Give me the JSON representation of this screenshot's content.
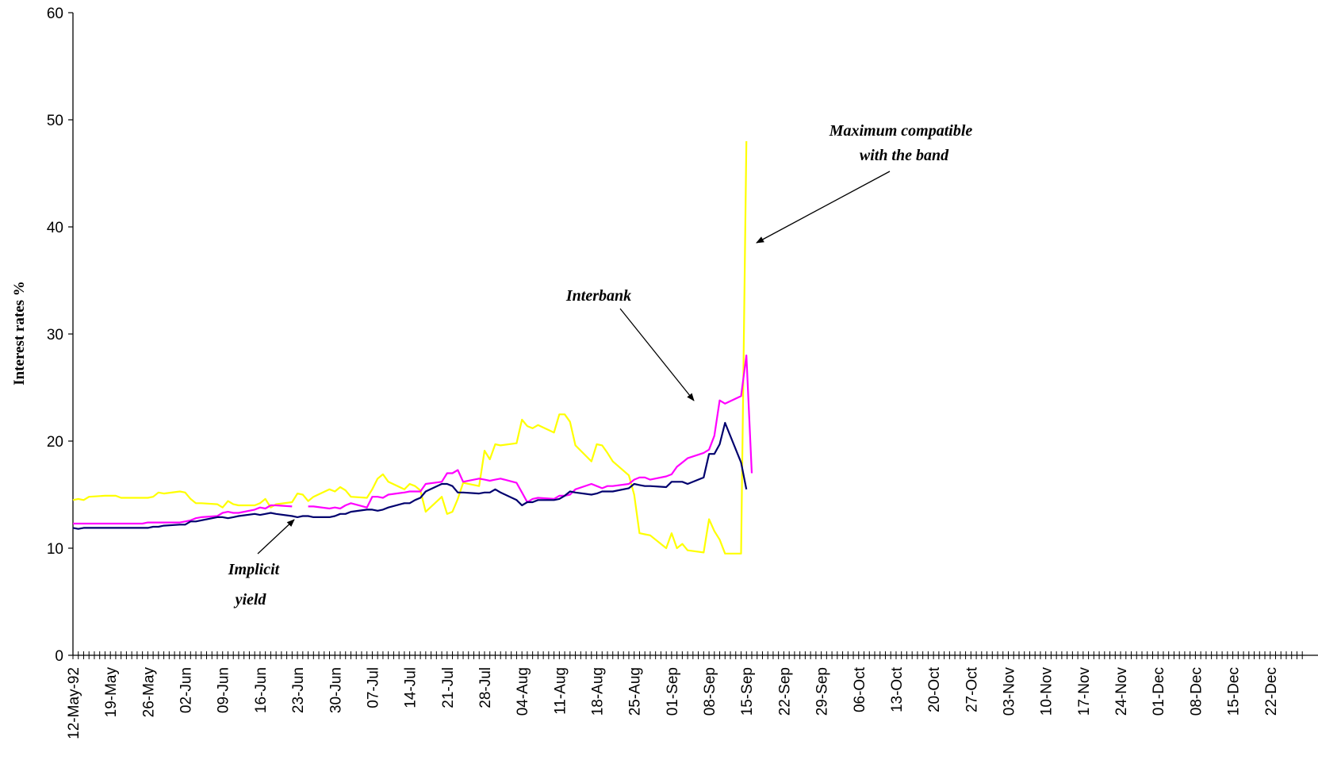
{
  "chart_data": {
    "type": "line",
    "ylabel": "Interest rates %",
    "ylim": [
      0,
      60
    ],
    "yticks": [
      0,
      10,
      20,
      30,
      40,
      50,
      60
    ],
    "x_date_start": "1992-05-12",
    "x_date_end": "1992-12-28",
    "x_tick_labels": [
      "12-May-92",
      "19-May",
      "26-May",
      "02-Jun",
      "09-Jun",
      "16-Jun",
      "23-Jun",
      "30-Jun",
      "07-Jul",
      "14-Jul",
      "21-Jul",
      "28-Jul",
      "04-Aug",
      "11-Aug",
      "18-Aug",
      "25-Aug",
      "01-Sep",
      "08-Sep",
      "15-Sep",
      "22-Sep",
      "29-Sep",
      "06-Oct",
      "13-Oct",
      "20-Oct",
      "27-Oct",
      "03-Nov",
      "10-Nov",
      "17-Nov",
      "24-Nov",
      "01-Dec",
      "08-Dec",
      "15-Dec",
      "22-Dec"
    ],
    "series": [
      {
        "color": "#ffff00",
        "points": [
          [
            "1992-05-12",
            14.5
          ],
          [
            "1992-05-13",
            14.6
          ],
          [
            "1992-05-14",
            14.5
          ],
          [
            "1992-05-15",
            14.8
          ],
          [
            "1992-05-18",
            14.9
          ],
          [
            "1992-05-19",
            14.9
          ],
          [
            "1992-05-20",
            14.9
          ],
          [
            "1992-05-21",
            14.7
          ],
          [
            "1992-05-22",
            14.7
          ],
          [
            "1992-05-25",
            14.7
          ],
          [
            "1992-05-26",
            14.7
          ],
          [
            "1992-05-27",
            14.8
          ],
          [
            "1992-05-28",
            15.2
          ],
          [
            "1992-05-29",
            15.1
          ],
          [
            "1992-06-01",
            15.3
          ],
          [
            "1992-06-02",
            15.2
          ],
          [
            "1992-06-03",
            14.6
          ],
          [
            "1992-06-04",
            14.2
          ],
          [
            "1992-06-05",
            14.2
          ],
          [
            "1992-06-08",
            14.1
          ],
          [
            "1992-06-09",
            13.8
          ],
          [
            "1992-06-10",
            14.4
          ],
          [
            "1992-06-11",
            14.1
          ],
          [
            "1992-06-12",
            14.0
          ],
          [
            "1992-06-15",
            14.0
          ],
          [
            "1992-06-16",
            14.2
          ],
          [
            "1992-06-17",
            14.6
          ],
          [
            "1992-06-18",
            13.8
          ],
          [
            "1992-06-19",
            14.1
          ],
          [
            "1992-06-22",
            14.3
          ],
          [
            "1992-06-23",
            15.1
          ],
          [
            "1992-06-24",
            15.0
          ],
          [
            "1992-06-25",
            14.4
          ],
          [
            "1992-06-26",
            14.8
          ],
          [
            "1992-06-29",
            15.5
          ],
          [
            "1992-06-30",
            15.3
          ],
          [
            "1992-07-01",
            15.7
          ],
          [
            "1992-07-02",
            15.4
          ],
          [
            "1992-07-03",
            14.8
          ],
          [
            "1992-07-06",
            14.7
          ],
          [
            "1992-07-07",
            15.5
          ],
          [
            "1992-07-08",
            16.5
          ],
          [
            "1992-07-09",
            16.9
          ],
          [
            "1992-07-10",
            16.2
          ],
          [
            "1992-07-13",
            15.5
          ],
          [
            "1992-07-14",
            16.0
          ],
          [
            "1992-07-15",
            15.8
          ],
          [
            "1992-07-16",
            15.4
          ],
          [
            "1992-07-17",
            13.4
          ],
          [
            "1992-07-20",
            14.8
          ],
          [
            "1992-07-21",
            13.2
          ],
          [
            "1992-07-22",
            13.4
          ],
          [
            "1992-07-23",
            14.6
          ],
          [
            "1992-07-24",
            16.1
          ],
          [
            "1992-07-27",
            15.8
          ],
          [
            "1992-07-28",
            19.1
          ],
          [
            "1992-07-29",
            18.3
          ],
          [
            "1992-07-30",
            19.7
          ],
          [
            "1992-07-31",
            19.6
          ],
          [
            "1992-08-03",
            19.8
          ],
          [
            "1992-08-04",
            22.0
          ],
          [
            "1992-08-05",
            21.4
          ],
          [
            "1992-08-06",
            21.2
          ],
          [
            "1992-08-07",
            21.5
          ],
          [
            "1992-08-10",
            20.8
          ],
          [
            "1992-08-11",
            22.5
          ],
          [
            "1992-08-12",
            22.5
          ],
          [
            "1992-08-13",
            21.8
          ],
          [
            "1992-08-14",
            19.6
          ],
          [
            "1992-08-17",
            18.1
          ],
          [
            "1992-08-18",
            19.7
          ],
          [
            "1992-08-19",
            19.6
          ],
          [
            "1992-08-20",
            18.9
          ],
          [
            "1992-08-21",
            18.1
          ],
          [
            "1992-08-24",
            16.8
          ],
          [
            "1992-08-25",
            15.0
          ],
          [
            "1992-08-26",
            11.4
          ],
          [
            "1992-08-27",
            11.3
          ],
          [
            "1992-08-28",
            11.2
          ],
          [
            "1992-08-31",
            10.0
          ],
          [
            "1992-09-01",
            11.4
          ],
          [
            "1992-09-02",
            10.0
          ],
          [
            "1992-09-03",
            10.4
          ],
          [
            "1992-09-04",
            9.8
          ],
          [
            "1992-09-07",
            9.6
          ],
          [
            "1992-09-08",
            12.7
          ],
          [
            "1992-09-09",
            11.6
          ],
          [
            "1992-09-10",
            10.8
          ],
          [
            "1992-09-11",
            9.5
          ],
          [
            "1992-09-14",
            9.5
          ],
          [
            "1992-09-15",
            48.0
          ]
        ]
      },
      {
        "color": "#ff00ff",
        "points": [
          [
            "1992-05-12",
            12.3
          ],
          [
            "1992-05-13",
            12.3
          ],
          [
            "1992-05-14",
            12.3
          ],
          [
            "1992-05-15",
            12.3
          ],
          [
            "1992-05-18",
            12.3
          ],
          [
            "1992-05-19",
            12.3
          ],
          [
            "1992-05-20",
            12.3
          ],
          [
            "1992-05-21",
            12.3
          ],
          [
            "1992-05-22",
            12.3
          ],
          [
            "1992-05-25",
            12.3
          ],
          [
            "1992-05-26",
            12.4
          ],
          [
            "1992-05-27",
            12.4
          ],
          [
            "1992-05-28",
            12.4
          ],
          [
            "1992-05-29",
            12.4
          ],
          [
            "1992-06-01",
            12.4
          ],
          [
            "1992-06-02",
            12.5
          ],
          [
            "1992-06-03",
            12.6
          ],
          [
            "1992-06-04",
            12.8
          ],
          [
            "1992-06-05",
            12.9
          ],
          [
            "1992-06-08",
            13.0
          ],
          [
            "1992-06-09",
            13.3
          ],
          [
            "1992-06-10",
            13.4
          ],
          [
            "1992-06-11",
            13.3
          ],
          [
            "1992-06-12",
            13.3
          ],
          [
            "1992-06-15",
            13.6
          ],
          [
            "1992-06-16",
            13.8
          ],
          [
            "1992-06-17",
            13.7
          ],
          [
            "1992-06-18",
            14.0
          ],
          [
            "1992-06-19",
            14.0
          ],
          [
            "1992-06-22",
            13.9
          ],
          null,
          [
            "1992-06-25",
            13.9
          ],
          [
            "1992-06-26",
            13.9
          ],
          [
            "1992-06-29",
            13.7
          ],
          [
            "1992-06-30",
            13.8
          ],
          [
            "1992-07-01",
            13.7
          ],
          [
            "1992-07-02",
            14.0
          ],
          [
            "1992-07-03",
            14.2
          ],
          [
            "1992-07-06",
            13.8
          ],
          [
            "1992-07-07",
            14.8
          ],
          [
            "1992-07-08",
            14.8
          ],
          [
            "1992-07-09",
            14.7
          ],
          [
            "1992-07-10",
            15.0
          ],
          [
            "1992-07-13",
            15.2
          ],
          [
            "1992-07-14",
            15.3
          ],
          [
            "1992-07-15",
            15.3
          ],
          [
            "1992-07-16",
            15.3
          ],
          [
            "1992-07-17",
            16.0
          ],
          [
            "1992-07-20",
            16.2
          ],
          [
            "1992-07-21",
            17.0
          ],
          [
            "1992-07-22",
            17.0
          ],
          [
            "1992-07-23",
            17.3
          ],
          [
            "1992-07-24",
            16.2
          ],
          [
            "1992-07-27",
            16.5
          ],
          [
            "1992-07-28",
            16.4
          ],
          [
            "1992-07-29",
            16.3
          ],
          [
            "1992-07-30",
            16.4
          ],
          [
            "1992-07-31",
            16.5
          ],
          [
            "1992-08-03",
            16.1
          ],
          [
            "1992-08-04",
            15.2
          ],
          [
            "1992-08-05",
            14.3
          ],
          [
            "1992-08-06",
            14.6
          ],
          [
            "1992-08-07",
            14.7
          ],
          [
            "1992-08-10",
            14.6
          ],
          [
            "1992-08-11",
            14.9
          ],
          [
            "1992-08-12",
            14.9
          ],
          [
            "1992-08-13",
            15.0
          ],
          [
            "1992-08-14",
            15.5
          ],
          [
            "1992-08-17",
            16.0
          ],
          [
            "1992-08-18",
            15.8
          ],
          [
            "1992-08-19",
            15.6
          ],
          [
            "1992-08-20",
            15.8
          ],
          [
            "1992-08-21",
            15.8
          ],
          [
            "1992-08-24",
            16.0
          ],
          [
            "1992-08-25",
            16.4
          ],
          [
            "1992-08-26",
            16.6
          ],
          [
            "1992-08-27",
            16.6
          ],
          [
            "1992-08-28",
            16.4
          ],
          [
            "1992-08-31",
            16.7
          ],
          [
            "1992-09-01",
            16.9
          ],
          [
            "1992-09-02",
            17.6
          ],
          [
            "1992-09-03",
            18.0
          ],
          [
            "1992-09-04",
            18.4
          ],
          [
            "1992-09-07",
            18.9
          ],
          [
            "1992-09-08",
            19.2
          ],
          [
            "1992-09-09",
            20.5
          ],
          [
            "1992-09-10",
            23.8
          ],
          [
            "1992-09-11",
            23.5
          ],
          [
            "1992-09-14",
            24.2
          ],
          [
            "1992-09-15",
            28.0
          ],
          [
            "1992-09-16",
            17.0
          ]
        ]
      },
      {
        "color": "#00006e",
        "points": [
          [
            "1992-05-12",
            11.9
          ],
          [
            "1992-05-13",
            11.8
          ],
          [
            "1992-05-14",
            11.9
          ],
          [
            "1992-05-15",
            11.9
          ],
          [
            "1992-05-18",
            11.9
          ],
          [
            "1992-05-19",
            11.9
          ],
          [
            "1992-05-20",
            11.9
          ],
          [
            "1992-05-21",
            11.9
          ],
          [
            "1992-05-22",
            11.9
          ],
          [
            "1992-05-25",
            11.9
          ],
          [
            "1992-05-26",
            11.9
          ],
          [
            "1992-05-27",
            12.0
          ],
          [
            "1992-05-28",
            12.0
          ],
          [
            "1992-05-29",
            12.1
          ],
          [
            "1992-06-01",
            12.2
          ],
          [
            "1992-06-02",
            12.2
          ],
          [
            "1992-06-03",
            12.5
          ],
          [
            "1992-06-04",
            12.5
          ],
          [
            "1992-06-05",
            12.6
          ],
          [
            "1992-06-08",
            12.9
          ],
          [
            "1992-06-09",
            12.9
          ],
          [
            "1992-06-10",
            12.8
          ],
          [
            "1992-06-11",
            12.9
          ],
          [
            "1992-06-12",
            13.0
          ],
          [
            "1992-06-15",
            13.2
          ],
          [
            "1992-06-16",
            13.1
          ],
          [
            "1992-06-17",
            13.2
          ],
          [
            "1992-06-18",
            13.3
          ],
          [
            "1992-06-19",
            13.2
          ],
          [
            "1992-06-22",
            13.0
          ],
          [
            "1992-06-23",
            12.9
          ],
          [
            "1992-06-24",
            13.0
          ],
          [
            "1992-06-25",
            13.0
          ],
          [
            "1992-06-26",
            12.9
          ],
          [
            "1992-06-29",
            12.9
          ],
          [
            "1992-06-30",
            13.0
          ],
          [
            "1992-07-01",
            13.2
          ],
          [
            "1992-07-02",
            13.2
          ],
          [
            "1992-07-03",
            13.4
          ],
          [
            "1992-07-06",
            13.6
          ],
          [
            "1992-07-07",
            13.6
          ],
          [
            "1992-07-08",
            13.5
          ],
          [
            "1992-07-09",
            13.6
          ],
          [
            "1992-07-10",
            13.8
          ],
          [
            "1992-07-13",
            14.2
          ],
          [
            "1992-07-14",
            14.2
          ],
          [
            "1992-07-15",
            14.5
          ],
          [
            "1992-07-16",
            14.7
          ],
          [
            "1992-07-17",
            15.3
          ],
          [
            "1992-07-20",
            16.0
          ],
          [
            "1992-07-21",
            16.0
          ],
          [
            "1992-07-22",
            15.8
          ],
          [
            "1992-07-23",
            15.2
          ],
          [
            "1992-07-24",
            15.2
          ],
          [
            "1992-07-27",
            15.1
          ],
          [
            "1992-07-28",
            15.2
          ],
          [
            "1992-07-29",
            15.2
          ],
          [
            "1992-07-30",
            15.5
          ],
          [
            "1992-07-31",
            15.2
          ],
          [
            "1992-08-03",
            14.5
          ],
          [
            "1992-08-04",
            14.0
          ],
          [
            "1992-08-05",
            14.3
          ],
          [
            "1992-08-06",
            14.3
          ],
          [
            "1992-08-07",
            14.5
          ],
          [
            "1992-08-10",
            14.5
          ],
          [
            "1992-08-11",
            14.6
          ],
          [
            "1992-08-12",
            14.9
          ],
          [
            "1992-08-13",
            15.3
          ],
          [
            "1992-08-14",
            15.2
          ],
          [
            "1992-08-17",
            15.0
          ],
          [
            "1992-08-18",
            15.1
          ],
          [
            "1992-08-19",
            15.3
          ],
          [
            "1992-08-20",
            15.3
          ],
          [
            "1992-08-21",
            15.3
          ],
          [
            "1992-08-24",
            15.6
          ],
          [
            "1992-08-25",
            16.0
          ],
          [
            "1992-08-26",
            15.9
          ],
          [
            "1992-08-27",
            15.8
          ],
          [
            "1992-08-28",
            15.8
          ],
          [
            "1992-08-31",
            15.7
          ],
          [
            "1992-09-01",
            16.2
          ],
          [
            "1992-09-02",
            16.2
          ],
          [
            "1992-09-03",
            16.2
          ],
          [
            "1992-09-04",
            16.0
          ],
          [
            "1992-09-07",
            16.6
          ],
          [
            "1992-09-08",
            18.8
          ],
          [
            "1992-09-09",
            18.8
          ],
          [
            "1992-09-10",
            19.7
          ],
          [
            "1992-09-11",
            21.7
          ],
          [
            "1992-09-14",
            18.0
          ],
          [
            "1992-09-15",
            15.5
          ]
        ]
      }
    ],
    "annotations": [
      {
        "lines": [
          "Maximum compatible",
          "with the band"
        ]
      },
      {
        "lines": [
          "Interbank"
        ]
      },
      {
        "lines": [
          "Implicit",
          "yield"
        ]
      }
    ]
  }
}
